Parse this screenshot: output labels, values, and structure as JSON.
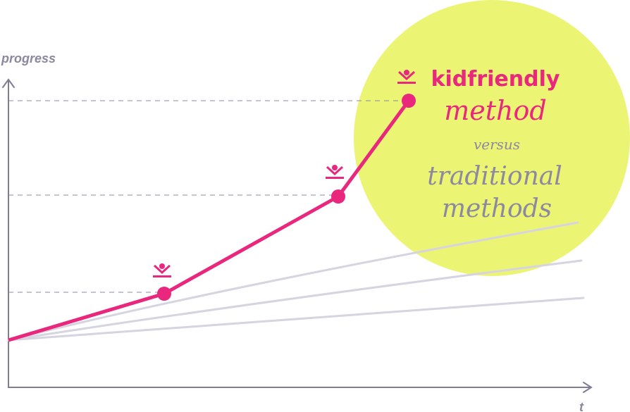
{
  "axes": {
    "y_label": "progress",
    "x_label": "t"
  },
  "legend": {
    "brand": "kidfriendly",
    "method": "method",
    "versus": "versus",
    "traditional": "traditional",
    "methods": "methods"
  }
}
